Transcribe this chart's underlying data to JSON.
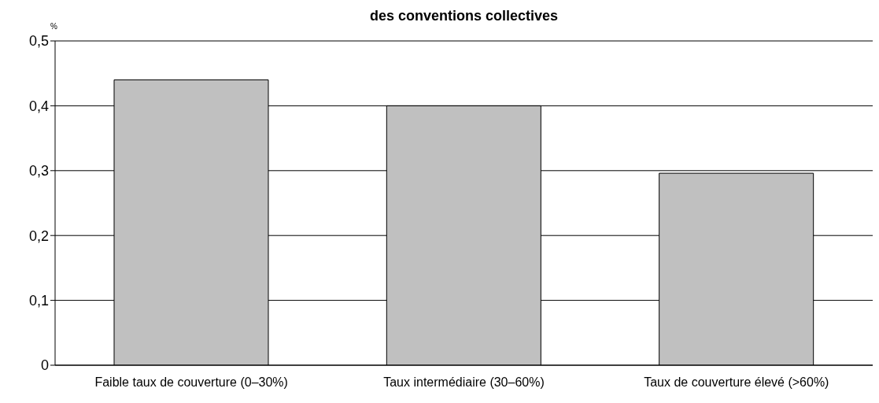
{
  "chart_data": {
    "type": "bar",
    "title": "des conventions collectives",
    "ylabel": "%",
    "categories": [
      "Faible taux de couverture (0–30%)",
      "Taux intermédiaire (30–60%)",
      "Taux de couverture élevé (>60%)"
    ],
    "values": [
      0.44,
      0.4,
      0.296
    ],
    "color": "#c0c0c0",
    "ylim": [
      0,
      0.5
    ],
    "yticks": [
      0,
      {
        "value": 0.1,
        "label": "0,1"
      },
      {
        "value": 0.2,
        "label": "0,2"
      },
      {
        "value": 0.3,
        "label": "0,3"
      },
      {
        "value": 0.4,
        "label": "0,4"
      },
      {
        "value": 0.5,
        "label": "0,5"
      }
    ],
    "grid": "y"
  }
}
